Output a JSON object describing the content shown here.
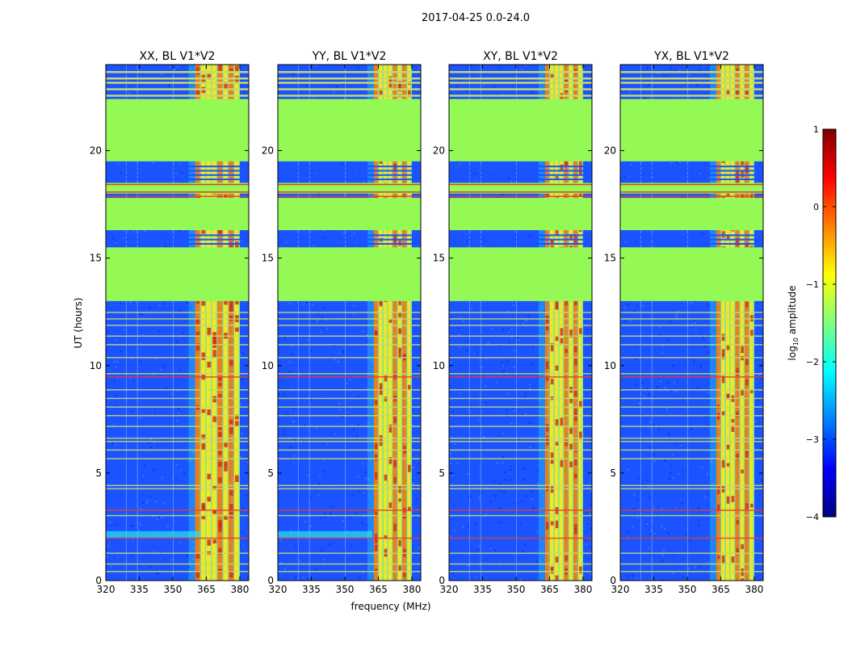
{
  "figure_title": "2017-04-25 0.0-24.0",
  "colors": {
    "field_green": "#94f954",
    "bg_blue": "#1a53ff",
    "bg_blue_dark": "#0a2ee0",
    "stripe_light": "#c8d86a",
    "stripe_red": "#e8402a",
    "rfi_orange": "#f07c18",
    "rfi_yellow": "#f0e824",
    "rfi_red": "#e02a12",
    "cyan": "#29e6f0"
  },
  "chart_data": {
    "type": "heatmap",
    "xlabel": "frequency (MHz)",
    "ylabel": "UT (hours)",
    "xlim": [
      320,
      384
    ],
    "ylim": [
      0,
      24
    ],
    "xticks": [
      320,
      335,
      350,
      365,
      380
    ],
    "yticks": [
      0,
      5,
      10,
      15,
      20
    ],
    "panels": [
      {
        "title": "XX, BL V1*V2",
        "variant": 0
      },
      {
        "title": "YY, BL V1*V2",
        "variant": 1
      },
      {
        "title": "XY, BL V1*V2",
        "variant": 2
      },
      {
        "title": "YX, BL V1*V2",
        "variant": 3
      }
    ],
    "flagged_ut_ranges": [
      [
        13.0,
        15.5
      ],
      [
        16.3,
        17.8
      ],
      [
        18.0,
        18.5
      ],
      [
        19.5,
        22.4
      ]
    ],
    "rfi_band_mhz": [
      360,
      380
    ],
    "colorbar": {
      "label": "log10 amplitude",
      "label_prefix": "log",
      "label_sub": "10",
      "label_suffix": " amplitude",
      "min": -4,
      "max": 1,
      "ticks": [
        "1",
        "0",
        "−1",
        "−2",
        "−3",
        "−4"
      ],
      "tick_values": [
        1,
        0,
        -1,
        -2,
        -3,
        -4
      ],
      "stops": [
        "#00007f",
        "#0000ff",
        "#007fff",
        "#00ffff",
        "#7fff7f",
        "#ffff00",
        "#ff7f00",
        "#ff0000",
        "#7f0000"
      ]
    }
  }
}
